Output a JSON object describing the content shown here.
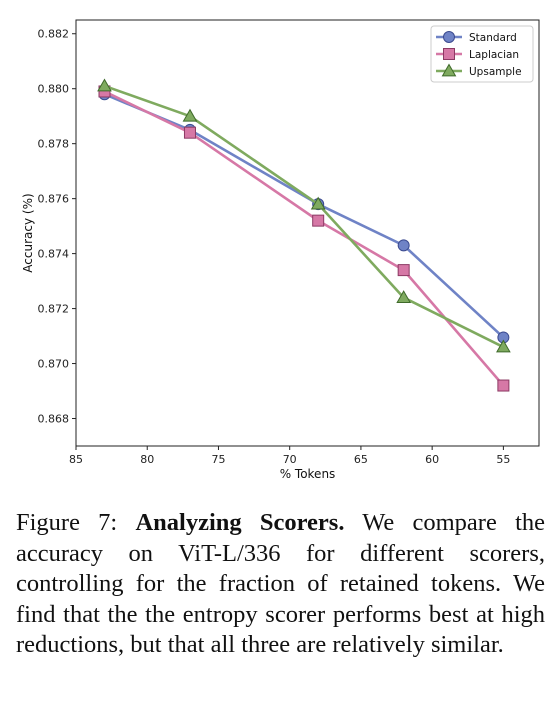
{
  "chart_data": {
    "type": "line",
    "title": "",
    "xlabel": "% Tokens",
    "ylabel": "Accuracy (%)",
    "xlim": [
      85,
      52.5
    ],
    "ylim": [
      0.867,
      0.8825
    ],
    "xticks": [
      85,
      80,
      75,
      70,
      65,
      60,
      55
    ],
    "yticks": [
      0.868,
      0.87,
      0.872,
      0.874,
      0.876,
      0.878,
      0.88,
      0.882
    ],
    "x_reversed": true,
    "grid": false,
    "legend_position": "top-right",
    "x": [
      83,
      77,
      68,
      62,
      55
    ],
    "series": [
      {
        "name": "Standard",
        "marker": "circle",
        "color": "#6f83c6",
        "edge": "#3b4a8f",
        "values": [
          0.8798,
          0.8785,
          0.8758,
          0.8743,
          0.87095
        ]
      },
      {
        "name": "Laplacian",
        "marker": "square",
        "color": "#d678a6",
        "edge": "#8c3a64",
        "values": [
          0.8799,
          0.8784,
          0.8752,
          0.8734,
          0.8692
        ]
      },
      {
        "name": "Upsample",
        "marker": "triangle",
        "color": "#7faa5f",
        "edge": "#3f6a2a",
        "values": [
          0.8801,
          0.879,
          0.8758,
          0.8724,
          0.8706
        ]
      }
    ]
  },
  "caption": {
    "label": "Figure 7:",
    "title": "Analyzing Scorers.",
    "body": "We compare the accuracy on ViT-L/336 for different scorers, controlling for the fraction of retained tokens. We find that the the entropy scorer performs best at high reductions, but that all three are relatively similar."
  },
  "watermark": "⠀⠀⠀⠀⠀⠀⠀⠀⠀⠀⠀⠀⠀⠀⠀⠀⠀⠀⠀⠀⠀⠀⠀"
}
